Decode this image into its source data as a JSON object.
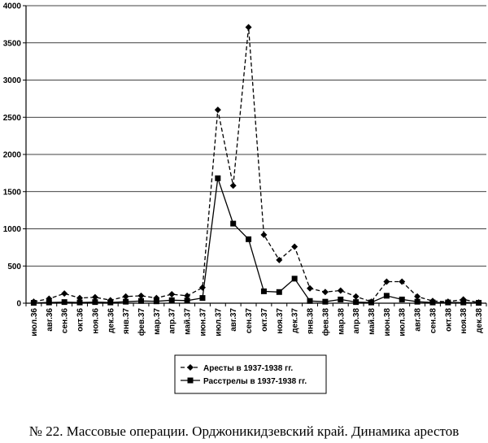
{
  "caption": "№ 22. Массовые операции. Орджоникидзевский край. Динамика арестов",
  "chart_data": {
    "type": "line",
    "title": "",
    "xlabel": "",
    "ylabel": "",
    "ylim": [
      0,
      4000
    ],
    "yticks": [
      0,
      500,
      1000,
      1500,
      2000,
      2500,
      3000,
      3500,
      4000
    ],
    "grid": "horizontal",
    "legend_position": "bottom-center",
    "categories": [
      "июл.36",
      "авг.36",
      "сен.36",
      "окт.36",
      "ноя.36",
      "дек.36",
      "янв.37",
      "фев.37",
      "мар.37",
      "апр.37",
      "май.37",
      "июн.37",
      "июл.37",
      "авг.37",
      "сен.37",
      "окт.37",
      "ноя.37",
      "дек.37",
      "янв.38",
      "фев.38",
      "мар.38",
      "апр.38",
      "май.38",
      "июн.38",
      "июл.38",
      "авг.38",
      "сен.38",
      "окт.38",
      "ноя.38",
      "дек.38"
    ],
    "series": [
      {
        "name": "Аресты в 1937-1938 гг.",
        "line": "dashed",
        "marker": "diamond",
        "values": [
          20,
          60,
          130,
          70,
          80,
          40,
          90,
          100,
          70,
          120,
          100,
          210,
          2600,
          1580,
          3710,
          920,
          580,
          760,
          200,
          150,
          170,
          90,
          20,
          290,
          290,
          90,
          30,
          20,
          50,
          10
        ]
      },
      {
        "name": "Расстрелы в 1937-1938 гг.",
        "line": "solid",
        "marker": "square",
        "values": [
          5,
          10,
          15,
          10,
          15,
          10,
          20,
          30,
          25,
          40,
          35,
          70,
          1680,
          1070,
          860,
          160,
          150,
          330,
          30,
          20,
          50,
          15,
          10,
          100,
          50,
          20,
          10,
          10,
          10,
          5
        ]
      }
    ]
  }
}
